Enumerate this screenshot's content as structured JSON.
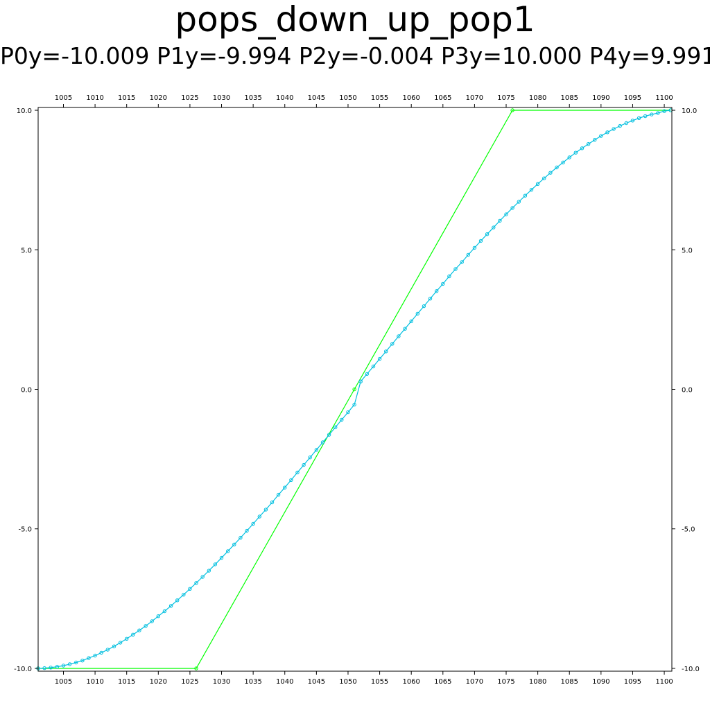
{
  "chart_data": {
    "type": "line",
    "title": "pops_down_up_pop1",
    "subtitle": "P0y=-10.009 P1y=-9.994 P2y=-0.004 P3y=10.000 P4y=9.991",
    "xlim": [
      1001,
      1101.2
    ],
    "ylim": [
      -10.1,
      10.1
    ],
    "x_ticks": [
      1005,
      1010,
      1015,
      1020,
      1025,
      1030,
      1035,
      1040,
      1045,
      1050,
      1055,
      1060,
      1065,
      1070,
      1075,
      1080,
      1085,
      1090,
      1095,
      1100
    ],
    "x_tick_labels": [
      "1005",
      "1010",
      "1015",
      "1020",
      "1025",
      "1030",
      "1035",
      "1040",
      "1045",
      "1050",
      "1055",
      "1060",
      "1065",
      "1070",
      "1075",
      "1080",
      "1085",
      "1090",
      "1095",
      "1100"
    ],
    "y_ticks": [
      -10,
      -5,
      0,
      5,
      10
    ],
    "y_tick_labels": [
      "-10.0",
      "-5.0",
      "0.0",
      "5.0",
      "10.0"
    ],
    "grid": false,
    "series": [
      {
        "color": "#00ff00",
        "x": [
          1001,
          1026,
          1051,
          1076,
          1101
        ],
        "y": [
          -10.0,
          -10.0,
          0.0,
          10.0,
          10.0
        ]
      },
      {
        "color": "#00bfdf",
        "x": [
          1001,
          1002,
          1003,
          1004,
          1005,
          1006,
          1007,
          1008,
          1009,
          1010,
          1011,
          1012,
          1013,
          1014,
          1015,
          1016,
          1017,
          1018,
          1019,
          1020,
          1021,
          1022,
          1023,
          1024,
          1025,
          1026,
          1027,
          1028,
          1029,
          1030,
          1031,
          1032,
          1033,
          1034,
          1035,
          1036,
          1037,
          1038,
          1039,
          1040,
          1041,
          1042,
          1043,
          1044,
          1045,
          1046,
          1047,
          1048,
          1049,
          1050,
          1051,
          1052,
          1053,
          1054,
          1055,
          1056,
          1057,
          1058,
          1059,
          1060,
          1061,
          1062,
          1063,
          1064,
          1065,
          1066,
          1067,
          1068,
          1069,
          1070,
          1071,
          1072,
          1073,
          1074,
          1075,
          1076,
          1077,
          1078,
          1079,
          1080,
          1081,
          1082,
          1083,
          1084,
          1085,
          1086,
          1087,
          1088,
          1089,
          1090,
          1091,
          1092,
          1093,
          1094,
          1095,
          1096,
          1097,
          1098,
          1099,
          1100,
          1101
        ],
        "y": [
          -10.0,
          -9.99,
          -9.97,
          -9.94,
          -9.9,
          -9.85,
          -9.79,
          -9.72,
          -9.63,
          -9.54,
          -9.44,
          -9.33,
          -9.21,
          -9.08,
          -8.94,
          -8.79,
          -8.64,
          -8.48,
          -8.31,
          -8.13,
          -7.95,
          -7.76,
          -7.56,
          -7.36,
          -7.15,
          -6.94,
          -6.72,
          -6.5,
          -6.27,
          -6.04,
          -5.8,
          -5.56,
          -5.32,
          -5.07,
          -4.82,
          -4.56,
          -4.31,
          -4.05,
          -3.78,
          -3.52,
          -3.25,
          -2.98,
          -2.71,
          -2.44,
          -2.17,
          -1.9,
          -1.63,
          -1.36,
          -1.09,
          -0.82,
          -0.55,
          0.28,
          0.55,
          0.82,
          1.09,
          1.36,
          1.63,
          1.9,
          2.17,
          2.44,
          2.71,
          2.98,
          3.25,
          3.52,
          3.78,
          4.05,
          4.31,
          4.56,
          4.82,
          5.07,
          5.32,
          5.56,
          5.8,
          6.04,
          6.27,
          6.5,
          6.72,
          6.94,
          7.15,
          7.36,
          7.56,
          7.76,
          7.95,
          8.13,
          8.31,
          8.48,
          8.64,
          8.79,
          8.94,
          9.08,
          9.21,
          9.33,
          9.44,
          9.54,
          9.63,
          9.72,
          9.79,
          9.85,
          9.9,
          9.97,
          10.0
        ]
      }
    ]
  }
}
